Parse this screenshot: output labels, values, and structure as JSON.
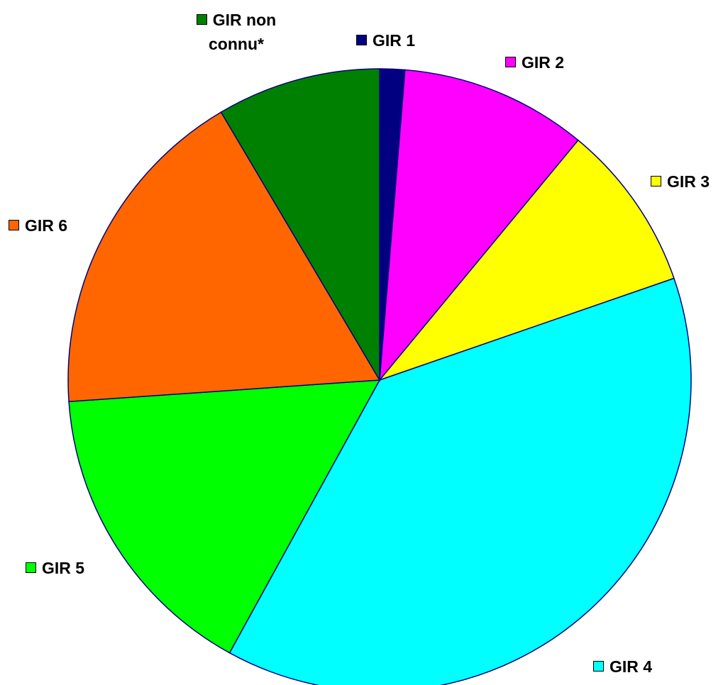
{
  "chart_data": {
    "type": "pie",
    "categories": [
      "GIR 1",
      "GIR 2",
      "GIR 3",
      "GIR 4",
      "GIR 5",
      "GIR 6",
      "GIR non connu*"
    ],
    "values": [
      1.3,
      9.7,
      8.7,
      38.3,
      15.9,
      17.6,
      8.5
    ],
    "colors": [
      "#000080",
      "#ff00ff",
      "#ffff00",
      "#00ffff",
      "#00ff00",
      "#ff6600",
      "#008000"
    ]
  }
}
